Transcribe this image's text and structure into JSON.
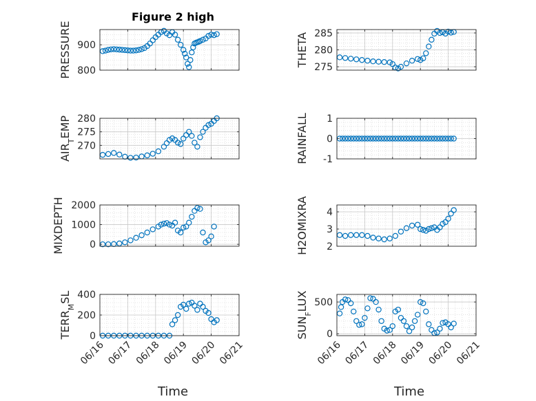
{
  "figure": {
    "title": "Figure 2 high",
    "xlabel": "Time",
    "marker_color": "#0072BD",
    "x_ticks": [
      "06/16",
      "06/17",
      "06/18",
      "06/19",
      "06/20",
      "06/21"
    ]
  },
  "chart_data": [
    {
      "type": "scatter",
      "name": "PRESSURE",
      "ylabel": "PRESSURE",
      "ylim": [
        800,
        960
      ],
      "yticks": [
        800,
        900
      ],
      "grid": true,
      "x": [
        0.1,
        0.2,
        0.3,
        0.4,
        0.5,
        0.6,
        0.7,
        0.8,
        0.9,
        1.0,
        1.1,
        1.2,
        1.3,
        1.4,
        1.5,
        1.6,
        1.7,
        1.8,
        1.9,
        2.0,
        2.1,
        2.2,
        2.3,
        2.4,
        2.5,
        2.6,
        2.7,
        2.8,
        2.9,
        3.0,
        3.05,
        3.1,
        3.15,
        3.2,
        3.25,
        3.3,
        3.35,
        3.4,
        3.45,
        3.5,
        3.55,
        3.6,
        3.7,
        3.8,
        3.9,
        4.0,
        4.1,
        4.2
      ],
      "y": [
        875,
        877,
        880,
        882,
        883,
        882,
        881,
        880,
        879,
        878,
        877,
        877,
        878,
        880,
        883,
        887,
        895,
        905,
        918,
        930,
        940,
        950,
        955,
        945,
        938,
        950,
        940,
        920,
        900,
        880,
        865,
        850,
        825,
        812,
        840,
        870,
        890,
        905,
        908,
        910,
        912,
        915,
        920,
        925,
        935,
        940,
        938,
        942
      ]
    },
    {
      "type": "scatter",
      "name": "THETA",
      "ylabel": "THETA",
      "ylim": [
        274,
        286
      ],
      "yticks": [
        275,
        280,
        285
      ],
      "grid": true,
      "x": [
        0.1,
        0.3,
        0.5,
        0.7,
        0.9,
        1.1,
        1.3,
        1.5,
        1.7,
        1.9,
        2.0,
        2.1,
        2.2,
        2.3,
        2.5,
        2.7,
        2.9,
        3.0,
        3.1,
        3.2,
        3.3,
        3.4,
        3.5,
        3.6,
        3.7,
        3.8,
        3.9,
        4.0,
        4.1,
        4.2
      ],
      "y": [
        277.8,
        277.6,
        277.4,
        277.2,
        277.0,
        276.8,
        276.6,
        276.5,
        276.4,
        276.3,
        275.8,
        274.8,
        274.5,
        275.0,
        276.0,
        276.8,
        277.3,
        277.0,
        277.5,
        279.0,
        281.0,
        283.0,
        284.8,
        285.6,
        285.0,
        285.2,
        284.8,
        285.4,
        285.1,
        285.3
      ]
    },
    {
      "type": "scatter",
      "name": "AIR_TEMP",
      "ylabel": "AIR_TEMP",
      "ylim": [
        265,
        280
      ],
      "yticks": [
        270,
        275,
        280
      ],
      "grid": true,
      "x": [
        0.1,
        0.3,
        0.5,
        0.7,
        0.9,
        1.1,
        1.3,
        1.5,
        1.7,
        1.9,
        2.1,
        2.3,
        2.4,
        2.5,
        2.6,
        2.7,
        2.8,
        2.9,
        3.0,
        3.1,
        3.2,
        3.3,
        3.4,
        3.5,
        3.6,
        3.7,
        3.8,
        3.9,
        4.0,
        4.1,
        4.2
      ],
      "y": [
        266.5,
        266.8,
        267.2,
        266.6,
        265.8,
        265.4,
        265.5,
        265.9,
        266.3,
        266.9,
        267.8,
        269.5,
        270.8,
        272.0,
        272.6,
        272.0,
        271.0,
        270.5,
        272.5,
        273.8,
        275.0,
        273.5,
        271.0,
        269.5,
        273.0,
        275.0,
        276.5,
        277.5,
        278.0,
        279.0,
        280.0
      ]
    },
    {
      "type": "scatter",
      "name": "RAINFALL",
      "ylabel": "RAINFALL",
      "ylim": [
        -1,
        1
      ],
      "yticks": [
        -1,
        0,
        1
      ],
      "grid": true,
      "x": [
        0.1,
        0.2,
        0.3,
        0.4,
        0.5,
        0.6,
        0.7,
        0.8,
        0.9,
        1.0,
        1.1,
        1.2,
        1.3,
        1.4,
        1.5,
        1.6,
        1.7,
        1.8,
        1.9,
        2.0,
        2.1,
        2.2,
        2.3,
        2.4,
        2.5,
        2.6,
        2.7,
        2.8,
        2.9,
        3.0,
        3.1,
        3.2,
        3.3,
        3.4,
        3.5,
        3.6,
        3.7,
        3.8,
        3.9,
        4.0,
        4.1,
        4.2
      ],
      "y": [
        0,
        0,
        0,
        0,
        0,
        0,
        0,
        0,
        0,
        0,
        0,
        0,
        0,
        0,
        0,
        0,
        0,
        0,
        0,
        0,
        0,
        0,
        0,
        0,
        0,
        0,
        0,
        0,
        0,
        0,
        0,
        0,
        0,
        0,
        0,
        0,
        0,
        0,
        0,
        0,
        0,
        0
      ]
    },
    {
      "type": "scatter",
      "name": "MIXDEPTH",
      "ylabel": "MIXDEPTH",
      "ylim": [
        -100,
        2000
      ],
      "yticks": [
        0,
        1000,
        2000
      ],
      "grid": true,
      "x": [
        0.1,
        0.3,
        0.5,
        0.7,
        0.9,
        1.1,
        1.3,
        1.5,
        1.7,
        1.9,
        2.1,
        2.2,
        2.3,
        2.4,
        2.5,
        2.6,
        2.7,
        2.8,
        2.9,
        3.0,
        3.1,
        3.2,
        3.3,
        3.4,
        3.5,
        3.6,
        3.7,
        3.8,
        3.9,
        4.0,
        4.1
      ],
      "y": [
        0,
        0,
        10,
        40,
        100,
        200,
        330,
        460,
        600,
        760,
        900,
        1000,
        1050,
        1080,
        1000,
        950,
        1100,
        700,
        600,
        850,
        900,
        1100,
        1400,
        1700,
        1850,
        1800,
        600,
        100,
        200,
        400,
        900
      ]
    },
    {
      "type": "scatter",
      "name": "H2OMIXRA",
      "ylabel": "H2OMIXRA",
      "ylim": [
        2,
        4.4
      ],
      "yticks": [
        2,
        3,
        4
      ],
      "grid": true,
      "x": [
        0.1,
        0.3,
        0.5,
        0.7,
        0.9,
        1.1,
        1.3,
        1.5,
        1.7,
        1.9,
        2.1,
        2.3,
        2.5,
        2.7,
        2.9,
        3.0,
        3.1,
        3.2,
        3.3,
        3.4,
        3.5,
        3.6,
        3.7,
        3.8,
        3.9,
        4.0,
        4.1,
        4.2
      ],
      "y": [
        2.65,
        2.6,
        2.65,
        2.65,
        2.65,
        2.6,
        2.5,
        2.45,
        2.4,
        2.45,
        2.6,
        2.85,
        3.05,
        3.2,
        3.25,
        3.0,
        2.95,
        2.9,
        3.0,
        3.05,
        3.1,
        2.95,
        3.1,
        3.3,
        3.4,
        3.6,
        3.9,
        4.1
      ]
    },
    {
      "type": "scatter",
      "name": "TERR_MSL",
      "ylabel": "TERR_MSL",
      "ylim": [
        0,
        400
      ],
      "yticks": [
        0,
        200,
        400
      ],
      "grid": true,
      "x": [
        0.1,
        0.3,
        0.5,
        0.7,
        0.9,
        1.1,
        1.3,
        1.5,
        1.7,
        1.9,
        2.1,
        2.3,
        2.5,
        2.6,
        2.7,
        2.8,
        2.9,
        3.0,
        3.1,
        3.2,
        3.3,
        3.4,
        3.5,
        3.6,
        3.7,
        3.8,
        3.9,
        4.0,
        4.1,
        4.2
      ],
      "y": [
        0,
        0,
        0,
        0,
        0,
        0,
        0,
        0,
        0,
        0,
        0,
        0,
        0,
        110,
        150,
        200,
        280,
        300,
        260,
        310,
        320,
        290,
        250,
        310,
        280,
        240,
        220,
        160,
        130,
        150
      ]
    },
    {
      "type": "scatter",
      "name": "SUN_FLUX",
      "ylabel": "SUN_FLUX",
      "ylim": [
        -30,
        620
      ],
      "yticks": [
        0,
        500
      ],
      "grid": true,
      "x": [
        0.1,
        0.15,
        0.2,
        0.3,
        0.4,
        0.5,
        0.6,
        0.7,
        0.8,
        0.9,
        1.0,
        1.1,
        1.2,
        1.3,
        1.4,
        1.5,
        1.6,
        1.7,
        1.8,
        1.9,
        2.0,
        2.1,
        2.2,
        2.3,
        2.4,
        2.5,
        2.6,
        2.7,
        2.8,
        2.9,
        3.0,
        3.1,
        3.2,
        3.3,
        3.4,
        3.5,
        3.6,
        3.7,
        3.8,
        3.9,
        4.0,
        4.1,
        4.2
      ],
      "y": [
        320,
        420,
        500,
        540,
        530,
        480,
        350,
        200,
        140,
        150,
        250,
        400,
        560,
        550,
        500,
        380,
        200,
        80,
        50,
        60,
        120,
        350,
        380,
        250,
        200,
        120,
        40,
        100,
        200,
        300,
        500,
        480,
        350,
        150,
        60,
        10,
        20,
        80,
        170,
        180,
        150,
        100,
        160
      ]
    }
  ]
}
